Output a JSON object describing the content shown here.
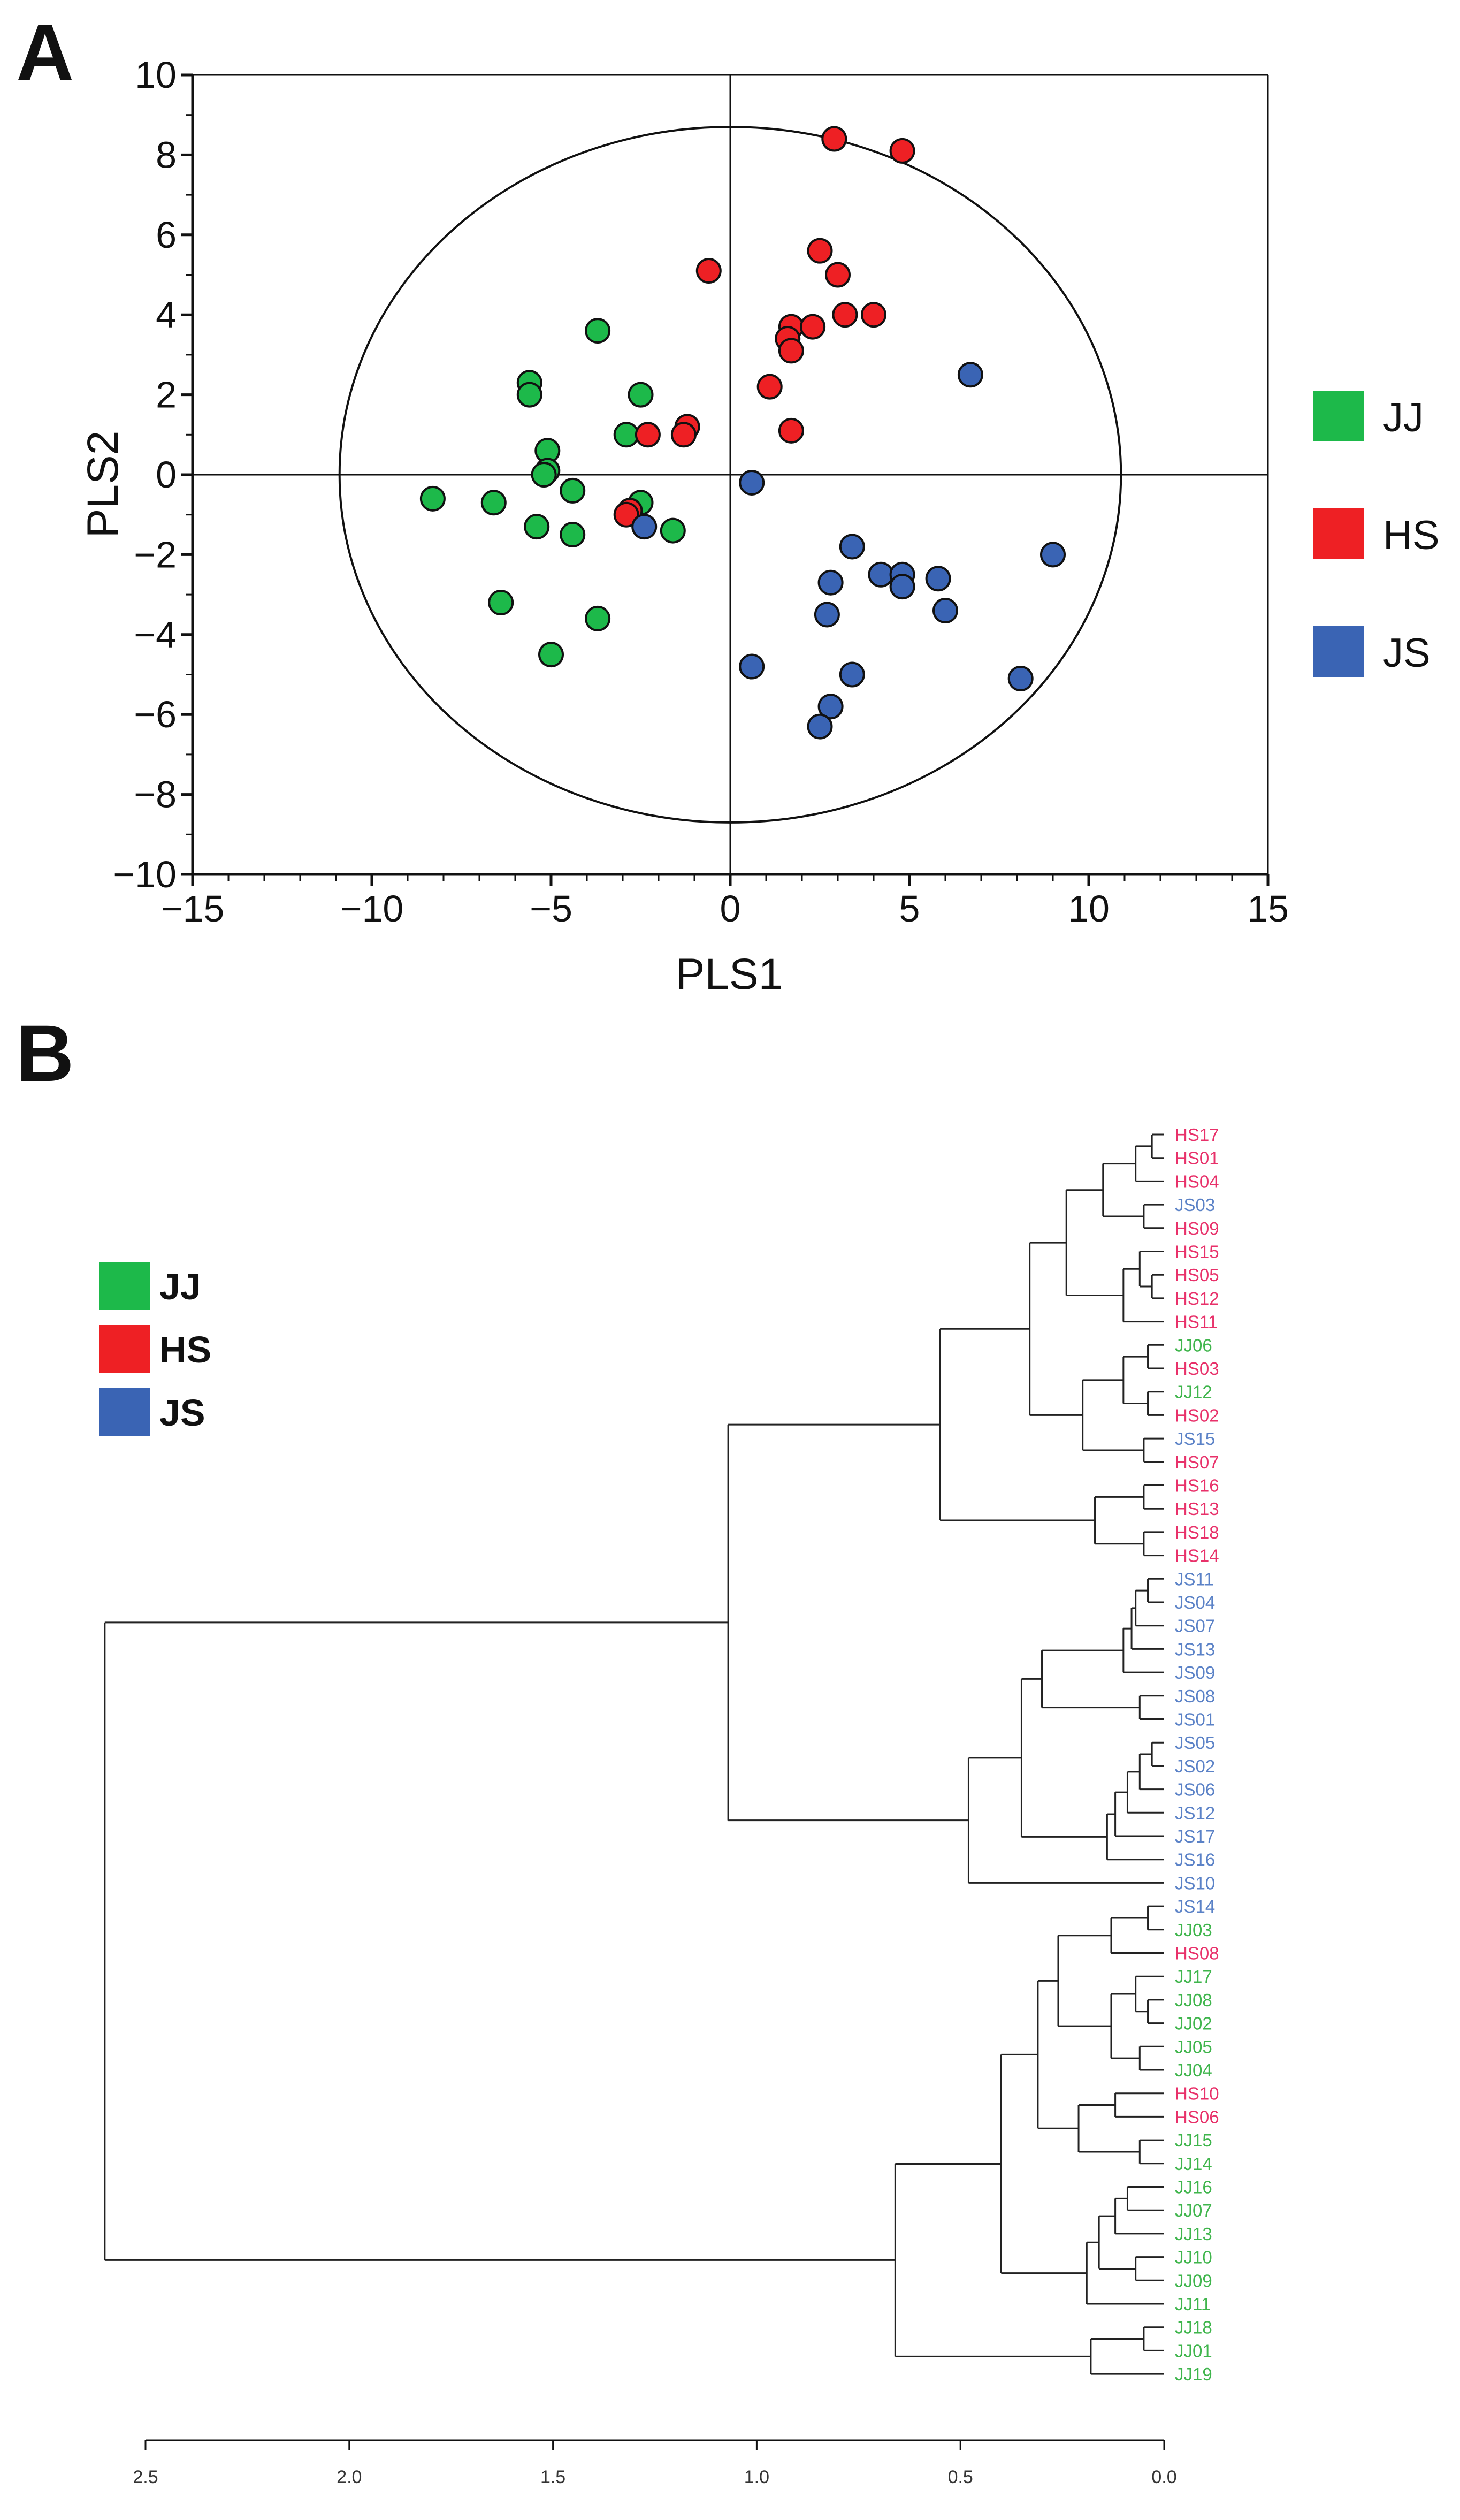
{
  "panel_a": {
    "letter": "A",
    "legend": [
      {
        "label": "JJ",
        "color": "#1db94a"
      },
      {
        "label": "HS",
        "color": "#ee2024"
      },
      {
        "label": "JS",
        "color": "#3a64b4"
      }
    ]
  },
  "panel_b": {
    "letter": "B",
    "legend": [
      {
        "label": "JJ",
        "color": "#1db94a"
      },
      {
        "label": "HS",
        "color": "#ee2024"
      },
      {
        "label": "JS",
        "color": "#3a64b4"
      }
    ],
    "label_colors": {
      "JJ": "#3fb54c",
      "HS": "#e8316a",
      "JS": "#5b82c7"
    }
  },
  "chart_data": [
    {
      "type": "scatter",
      "title": "",
      "xlabel": "PLS1",
      "ylabel": "PLS2",
      "xlim": [
        -15,
        15
      ],
      "ylim": [
        -10,
        10
      ],
      "xticks": [
        "−15",
        "−10",
        "−5",
        "0",
        "5",
        "10",
        "15"
      ],
      "xtick_values": [
        -15,
        -10,
        -5,
        0,
        5,
        10,
        15
      ],
      "yticks": [
        "−10",
        "−8",
        "−6",
        "−4",
        "−2",
        "0",
        "2",
        "4",
        "6",
        "8",
        "10"
      ],
      "ytick_values": [
        -10,
        -8,
        -6,
        -4,
        -2,
        0,
        2,
        4,
        6,
        8,
        10
      ],
      "ellipse": {
        "cx": 0,
        "cy": 0,
        "rx": 10.9,
        "ry": 8.7
      },
      "series": [
        {
          "name": "JJ",
          "color": "#1db94a",
          "points": [
            [
              -3.7,
              3.6
            ],
            [
              -5.6,
              2.3
            ],
            [
              -5.6,
              2.0
            ],
            [
              -2.5,
              2.0
            ],
            [
              -2.9,
              1.0
            ],
            [
              -5.1,
              0.6
            ],
            [
              -5.1,
              0.1
            ],
            [
              -5.2,
              0.0
            ],
            [
              -8.3,
              -0.6
            ],
            [
              -6.6,
              -0.7
            ],
            [
              -4.4,
              -0.4
            ],
            [
              -2.5,
              -0.7
            ],
            [
              -5.4,
              -1.3
            ],
            [
              -4.4,
              -1.5
            ],
            [
              -1.6,
              -1.4
            ],
            [
              -6.4,
              -3.2
            ],
            [
              -3.7,
              -3.6
            ],
            [
              -5.0,
              -4.5
            ]
          ]
        },
        {
          "name": "HS",
          "color": "#ee2024",
          "points": [
            [
              2.9,
              8.4
            ],
            [
              4.8,
              8.1
            ],
            [
              -0.6,
              5.1
            ],
            [
              2.5,
              5.6
            ],
            [
              3.0,
              5.0
            ],
            [
              1.7,
              3.7
            ],
            [
              1.6,
              3.4
            ],
            [
              2.3,
              3.7
            ],
            [
              3.2,
              4.0
            ],
            [
              4.0,
              4.0
            ],
            [
              1.7,
              3.1
            ],
            [
              1.1,
              2.2
            ],
            [
              1.7,
              1.1
            ],
            [
              -1.2,
              1.2
            ],
            [
              -1.3,
              1.0
            ],
            [
              -2.3,
              1.0
            ],
            [
              -2.8,
              -0.9
            ],
            [
              -2.9,
              -1.0
            ]
          ]
        },
        {
          "name": "JS",
          "color": "#3a64b4",
          "points": [
            [
              6.7,
              2.5
            ],
            [
              0.6,
              -0.2
            ],
            [
              -2.4,
              -1.3
            ],
            [
              9.0,
              -2.0
            ],
            [
              3.4,
              -1.8
            ],
            [
              4.2,
              -2.5
            ],
            [
              4.8,
              -2.5
            ],
            [
              4.8,
              -2.8
            ],
            [
              5.8,
              -2.6
            ],
            [
              2.8,
              -2.7
            ],
            [
              6.0,
              -3.4
            ],
            [
              2.7,
              -3.5
            ],
            [
              8.1,
              -5.1
            ],
            [
              0.6,
              -4.8
            ],
            [
              3.4,
              -5.0
            ],
            [
              2.8,
              -5.8
            ],
            [
              2.5,
              -6.3
            ]
          ]
        }
      ]
    },
    {
      "type": "dendrogram",
      "title": "",
      "xlabel": "",
      "xlim": [
        2.5,
        0.0
      ],
      "xticks": [
        "2.5",
        "2.0",
        "1.5",
        "1.0",
        "0.5",
        "0.0"
      ],
      "xtick_values": [
        2.5,
        2.0,
        1.5,
        1.0,
        0.5,
        0.0
      ],
      "leaves": [
        "HS17",
        "HS01",
        "HS04",
        "JS03",
        "HS09",
        "HS15",
        "HS05",
        "HS12",
        "HS11",
        "JJ06",
        "HS03",
        "JJ12",
        "HS02",
        "JS15",
        "HS07",
        "HS16",
        "HS13",
        "HS18",
        "HS14",
        "JS11",
        "JS04",
        "JS07",
        "JS13",
        "JS09",
        "JS08",
        "JS01",
        "JS05",
        "JS02",
        "JS06",
        "JS12",
        "JS17",
        "JS16",
        "JS10",
        "JS14",
        "JJ03",
        "HS08",
        "JJ17",
        "JJ08",
        "JJ02",
        "JJ05",
        "JJ04",
        "HS10",
        "HS06",
        "JJ15",
        "JJ14",
        "JJ16",
        "JJ07",
        "JJ13",
        "JJ10",
        "JJ09",
        "JJ11",
        "JJ18",
        "JJ01",
        "JJ19"
      ],
      "merges": [
        {
          "leaves": [
            "HS17",
            "HS01"
          ],
          "height": 0.03
        },
        {
          "name": "g1",
          "children": [
            "HS17",
            "HS01"
          ],
          "height": 0.03
        },
        {
          "name": "g2",
          "children": [
            "g1",
            "HS04"
          ],
          "height": 0.07
        },
        {
          "name": "g3",
          "children": [
            "JS03",
            "HS09"
          ],
          "height": 0.05
        },
        {
          "name": "g4",
          "children": [
            "g2",
            "g3"
          ],
          "height": 0.15
        },
        {
          "name": "g5",
          "children": [
            "HS05",
            "HS12"
          ],
          "height": 0.03
        },
        {
          "name": "g6",
          "children": [
            "HS15",
            "g5"
          ],
          "height": 0.06
        },
        {
          "name": "g7",
          "children": [
            "g6",
            "HS11"
          ],
          "height": 0.1
        },
        {
          "name": "g8",
          "children": [
            "g4",
            "g7"
          ],
          "height": 0.24
        },
        {
          "name": "g9",
          "children": [
            "JJ06",
            "HS03"
          ],
          "height": 0.04
        },
        {
          "name": "g10",
          "children": [
            "JJ12",
            "HS02"
          ],
          "height": 0.04
        },
        {
          "name": "g11",
          "children": [
            "g9",
            "g10"
          ],
          "height": 0.1
        },
        {
          "name": "g12",
          "children": [
            "JS15",
            "HS07"
          ],
          "height": 0.05
        },
        {
          "name": "g13",
          "children": [
            "g11",
            "g12"
          ],
          "height": 0.2
        },
        {
          "name": "g14",
          "children": [
            "g8",
            "g13"
          ],
          "height": 0.33
        },
        {
          "name": "g15",
          "children": [
            "HS16",
            "HS13"
          ],
          "height": 0.05
        },
        {
          "name": "g16",
          "children": [
            "HS18",
            "HS14"
          ],
          "height": 0.05
        },
        {
          "name": "g17",
          "children": [
            "g15",
            "g16"
          ],
          "height": 0.17
        },
        {
          "name": "g18",
          "children": [
            "g14",
            "g17"
          ],
          "height": 0.55
        },
        {
          "name": "g19",
          "children": [
            "JS11",
            "JS04"
          ],
          "height": 0.04
        },
        {
          "name": "g20",
          "children": [
            "g19",
            "JS07"
          ],
          "height": 0.07
        },
        {
          "name": "g21",
          "children": [
            "g20",
            "JS13"
          ],
          "height": 0.08
        },
        {
          "name": "g22",
          "children": [
            "g21",
            "JS09"
          ],
          "height": 0.1
        },
        {
          "name": "g23",
          "children": [
            "JS08",
            "JS01"
          ],
          "height": 0.06
        },
        {
          "name": "g24",
          "children": [
            "g22",
            "g23"
          ],
          "height": 0.3
        },
        {
          "name": "g25",
          "children": [
            "JS05",
            "JS02"
          ],
          "height": 0.03
        },
        {
          "name": "g26",
          "children": [
            "g25",
            "JS06"
          ],
          "height": 0.06
        },
        {
          "name": "g27",
          "children": [
            "g26",
            "JS12"
          ],
          "height": 0.09
        },
        {
          "name": "g28",
          "children": [
            "g27",
            "JS17"
          ],
          "height": 0.12
        },
        {
          "name": "g29",
          "children": [
            "g28",
            "JS16"
          ],
          "height": 0.14
        },
        {
          "name": "g30",
          "children": [
            "g24",
            "g29"
          ],
          "height": 0.35
        },
        {
          "name": "g31",
          "children": [
            "g30",
            "JS10"
          ],
          "height": 0.48
        },
        {
          "name": "g32",
          "children": [
            "g18",
            "g31"
          ],
          "height": 1.07
        },
        {
          "name": "g33",
          "children": [
            "JS14",
            "JJ03"
          ],
          "height": 0.04
        },
        {
          "name": "g34",
          "children": [
            "g33",
            "HS08"
          ],
          "height": 0.13
        },
        {
          "name": "g35",
          "children": [
            "JJ08",
            "JJ02"
          ],
          "height": 0.04
        },
        {
          "name": "g36",
          "children": [
            "JJ17",
            "g35"
          ],
          "height": 0.07
        },
        {
          "name": "g37",
          "children": [
            "JJ05",
            "JJ04"
          ],
          "height": 0.06
        },
        {
          "name": "g38",
          "children": [
            "g36",
            "g37"
          ],
          "height": 0.13
        },
        {
          "name": "g39",
          "children": [
            "g34",
            "g38"
          ],
          "height": 0.26
        },
        {
          "name": "g40",
          "children": [
            "HS10",
            "HS06"
          ],
          "height": 0.12
        },
        {
          "name": "g41",
          "children": [
            "JJ15",
            "JJ14"
          ],
          "height": 0.06
        },
        {
          "name": "g42",
          "children": [
            "g40",
            "g41"
          ],
          "height": 0.21
        },
        {
          "name": "g43",
          "children": [
            "g39",
            "g42"
          ],
          "height": 0.31
        },
        {
          "name": "g44",
          "children": [
            "JJ16",
            "JJ07"
          ],
          "height": 0.09
        },
        {
          "name": "g45",
          "children": [
            "g44",
            "JJ13"
          ],
          "height": 0.12
        },
        {
          "name": "g46",
          "children": [
            "JJ10",
            "JJ09"
          ],
          "height": 0.07
        },
        {
          "name": "g47",
          "children": [
            "g45",
            "g46"
          ],
          "height": 0.16
        },
        {
          "name": "g48",
          "children": [
            "g47",
            "JJ11"
          ],
          "height": 0.19
        },
        {
          "name": "g49",
          "children": [
            "g43",
            "g48"
          ],
          "height": 0.4
        },
        {
          "name": "g50",
          "children": [
            "JJ18",
            "JJ01"
          ],
          "height": 0.05
        },
        {
          "name": "g51",
          "children": [
            "g50",
            "JJ19"
          ],
          "height": 0.18
        },
        {
          "name": "g52",
          "children": [
            "g49",
            "g51"
          ],
          "height": 0.66
        },
        {
          "name": "root",
          "children": [
            "g32",
            "g52"
          ],
          "height": 2.6
        }
      ]
    }
  ]
}
